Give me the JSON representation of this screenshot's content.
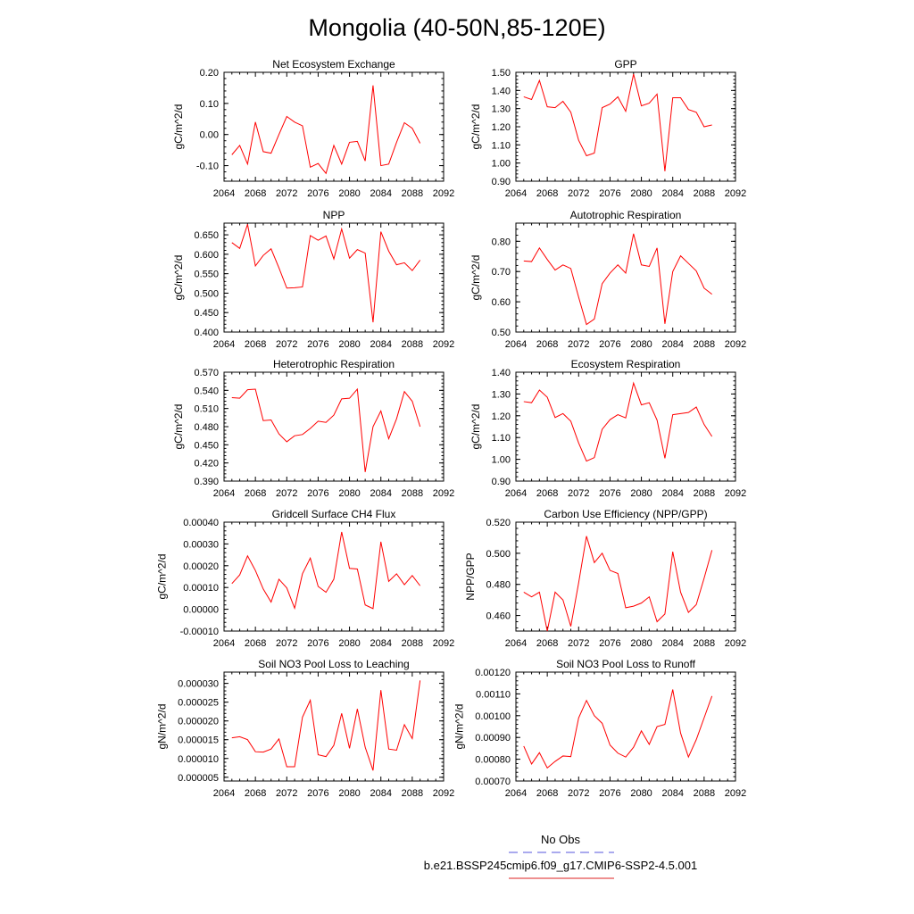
{
  "figure": {
    "title": "Mongolia (40-50N,85-120E)",
    "legend": [
      {
        "label": "No Obs",
        "color": "#5555dd",
        "style": "dashed"
      },
      {
        "label": "b.e21.BSSP245cmip6.f09_g17.CMIP6-SSP2-4.5.001",
        "color": "#dd2222",
        "style": "solid"
      }
    ]
  },
  "chart_data": [
    {
      "type": "line",
      "title": "Net Ecosystem Exchange",
      "ylabel": "gC/m^2/d",
      "xlim": [
        2064,
        2092
      ],
      "ylim": [
        -0.15,
        0.2
      ],
      "xticks": [
        "2064",
        "2068",
        "2072",
        "2076",
        "2080",
        "2084",
        "2088",
        "2092"
      ],
      "yticks": [
        "-0.10",
        "0.00",
        "0.10",
        "0.20"
      ],
      "series": [
        {
          "color": "#ff0000",
          "x": [
            2065,
            2066,
            2067,
            2068,
            2069,
            2070,
            2071,
            2072,
            2073,
            2074,
            2075,
            2076,
            2077,
            2078,
            2079,
            2080,
            2081,
            2082,
            2083,
            2084,
            2085,
            2086,
            2087,
            2088,
            2089
          ],
          "values": [
            -0.065,
            -0.035,
            -0.095,
            0.04,
            -0.055,
            -0.06,
            0.0,
            0.058,
            0.04,
            0.028,
            -0.105,
            -0.093,
            -0.125,
            -0.035,
            -0.095,
            -0.025,
            -0.022,
            -0.085,
            0.158,
            -0.1,
            -0.095,
            -0.025,
            0.038,
            0.02,
            -0.028
          ]
        }
      ]
    },
    {
      "type": "line",
      "title": "GPP",
      "ylabel": "gC/m^2/d",
      "xlim": [
        2064,
        2092
      ],
      "ylim": [
        0.9,
        1.5
      ],
      "xticks": [
        "2064",
        "2068",
        "2072",
        "2076",
        "2080",
        "2084",
        "2088",
        "2092"
      ],
      "yticks": [
        "0.90",
        "1.00",
        "1.10",
        "1.20",
        "1.30",
        "1.40",
        "1.50"
      ],
      "series": [
        {
          "color": "#ff0000",
          "x": [
            2065,
            2066,
            2067,
            2068,
            2069,
            2070,
            2071,
            2072,
            2073,
            2074,
            2075,
            2076,
            2077,
            2078,
            2079,
            2080,
            2081,
            2082,
            2083,
            2084,
            2085,
            2086,
            2087,
            2088,
            2089
          ],
          "values": [
            1.365,
            1.35,
            1.455,
            1.31,
            1.305,
            1.34,
            1.28,
            1.125,
            1.04,
            1.055,
            1.305,
            1.325,
            1.365,
            1.285,
            1.49,
            1.315,
            1.33,
            1.38,
            0.955,
            1.36,
            1.36,
            1.295,
            1.28,
            1.2,
            1.21
          ]
        }
      ]
    },
    {
      "type": "line",
      "title": "NPP",
      "ylabel": "gC/m^2/d",
      "xlim": [
        2064,
        2092
      ],
      "ylim": [
        0.4,
        0.68
      ],
      "xticks": [
        "2064",
        "2068",
        "2072",
        "2076",
        "2080",
        "2084",
        "2088",
        "2092"
      ],
      "yticks": [
        "0.400",
        "0.450",
        "0.500",
        "0.550",
        "0.600",
        "0.650"
      ],
      "series": [
        {
          "color": "#ff0000",
          "x": [
            2065,
            2066,
            2067,
            2068,
            2069,
            2070,
            2071,
            2072,
            2073,
            2074,
            2075,
            2076,
            2077,
            2078,
            2079,
            2080,
            2081,
            2082,
            2083,
            2084,
            2085,
            2086,
            2087,
            2088,
            2089
          ],
          "values": [
            0.63,
            0.615,
            0.677,
            0.57,
            0.597,
            0.614,
            0.565,
            0.513,
            0.514,
            0.516,
            0.648,
            0.636,
            0.647,
            0.588,
            0.665,
            0.59,
            0.612,
            0.603,
            0.425,
            0.658,
            0.608,
            0.573,
            0.578,
            0.558,
            0.585
          ]
        }
      ]
    },
    {
      "type": "line",
      "title": "Autotrophic Respiration",
      "ylabel": "gC/m^2/d",
      "xlim": [
        2064,
        2092
      ],
      "ylim": [
        0.5,
        0.86
      ],
      "xticks": [
        "2064",
        "2068",
        "2072",
        "2076",
        "2080",
        "2084",
        "2088",
        "2092"
      ],
      "yticks": [
        "0.50",
        "0.60",
        "0.70",
        "0.80"
      ],
      "series": [
        {
          "color": "#ff0000",
          "x": [
            2065,
            2066,
            2067,
            2068,
            2069,
            2070,
            2071,
            2072,
            2073,
            2074,
            2075,
            2076,
            2077,
            2078,
            2079,
            2080,
            2081,
            2082,
            2083,
            2084,
            2085,
            2086,
            2087,
            2088,
            2089
          ],
          "values": [
            0.735,
            0.733,
            0.778,
            0.74,
            0.705,
            0.722,
            0.71,
            0.615,
            0.525,
            0.543,
            0.66,
            0.695,
            0.722,
            0.695,
            0.825,
            0.722,
            0.717,
            0.778,
            0.527,
            0.7,
            0.752,
            0.727,
            0.702,
            0.645,
            0.625
          ]
        }
      ]
    },
    {
      "type": "line",
      "title": "Heterotrophic Respiration",
      "ylabel": "gC/m^2/d",
      "xlim": [
        2064,
        2092
      ],
      "ylim": [
        0.39,
        0.57
      ],
      "xticks": [
        "2064",
        "2068",
        "2072",
        "2076",
        "2080",
        "2084",
        "2088",
        "2092"
      ],
      "yticks": [
        "0.390",
        "0.420",
        "0.450",
        "0.480",
        "0.510",
        "0.540",
        "0.570"
      ],
      "series": [
        {
          "color": "#ff0000",
          "x": [
            2065,
            2066,
            2067,
            2068,
            2069,
            2070,
            2071,
            2072,
            2073,
            2074,
            2075,
            2076,
            2077,
            2078,
            2079,
            2080,
            2081,
            2082,
            2083,
            2084,
            2085,
            2086,
            2087,
            2088,
            2089
          ],
          "values": [
            0.528,
            0.527,
            0.541,
            0.542,
            0.49,
            0.491,
            0.468,
            0.455,
            0.465,
            0.467,
            0.477,
            0.489,
            0.487,
            0.499,
            0.526,
            0.527,
            0.542,
            0.405,
            0.48,
            0.506,
            0.46,
            0.493,
            0.538,
            0.522,
            0.48
          ]
        }
      ]
    },
    {
      "type": "line",
      "title": "Ecosystem Respiration",
      "ylabel": "gC/m^2/d",
      "xlim": [
        2064,
        2092
      ],
      "ylim": [
        0.9,
        1.4
      ],
      "xticks": [
        "2064",
        "2068",
        "2072",
        "2076",
        "2080",
        "2084",
        "2088",
        "2092"
      ],
      "yticks": [
        "0.90",
        "1.00",
        "1.10",
        "1.20",
        "1.30",
        "1.40"
      ],
      "series": [
        {
          "color": "#ff0000",
          "x": [
            2065,
            2066,
            2067,
            2068,
            2069,
            2070,
            2071,
            2072,
            2073,
            2074,
            2075,
            2076,
            2077,
            2078,
            2079,
            2080,
            2081,
            2082,
            2083,
            2084,
            2085,
            2086,
            2087,
            2088,
            2089
          ],
          "values": [
            1.265,
            1.26,
            1.318,
            1.285,
            1.192,
            1.21,
            1.175,
            1.075,
            0.992,
            1.008,
            1.138,
            1.182,
            1.205,
            1.19,
            1.35,
            1.25,
            1.26,
            1.18,
            1.005,
            1.205,
            1.21,
            1.215,
            1.24,
            1.16,
            1.105
          ]
        }
      ]
    },
    {
      "type": "line",
      "title": "Gridcell Surface CH4 Flux",
      "ylabel": "gC/m^2/d",
      "xlim": [
        2064,
        2092
      ],
      "ylim": [
        -0.0001,
        0.0004
      ],
      "xticks": [
        "2064",
        "2068",
        "2072",
        "2076",
        "2080",
        "2084",
        "2088",
        "2092"
      ],
      "yticks": [
        "-0.00010",
        "0.00000",
        "0.00010",
        "0.00020",
        "0.00030",
        "0.00040"
      ],
      "series": [
        {
          "color": "#ff0000",
          "x": [
            2065,
            2066,
            2067,
            2068,
            2069,
            2070,
            2071,
            2072,
            2073,
            2074,
            2075,
            2076,
            2077,
            2078,
            2079,
            2080,
            2081,
            2082,
            2083,
            2084,
            2085,
            2086,
            2087,
            2088,
            2089
          ],
          "values": [
            0.000118,
            0.000158,
            0.000245,
            0.000178,
            9.3e-05,
            3.3e-05,
            0.000138,
            9.8e-05,
            5e-06,
            0.000163,
            0.000235,
            0.000105,
            7.8e-05,
            0.000138,
            0.000355,
            0.000188,
            0.000185,
            2e-05,
            3e-06,
            0.00031,
            0.000128,
            0.000163,
            0.000113,
            0.000155,
            0.000108
          ]
        }
      ]
    },
    {
      "type": "line",
      "title": "Carbon Use Efficiency (NPP/GPP)",
      "ylabel": "NPP/GPP",
      "xlim": [
        2064,
        2092
      ],
      "ylim": [
        0.45,
        0.52
      ],
      "xticks": [
        "2064",
        "2068",
        "2072",
        "2076",
        "2080",
        "2084",
        "2088",
        "2092"
      ],
      "yticks": [
        "0.460",
        "0.480",
        "0.500",
        "0.520"
      ],
      "series": [
        {
          "color": "#ff0000",
          "x": [
            2065,
            2066,
            2067,
            2068,
            2069,
            2070,
            2071,
            2072,
            2073,
            2074,
            2075,
            2076,
            2077,
            2078,
            2079,
            2080,
            2081,
            2082,
            2083,
            2084,
            2085,
            2086,
            2087,
            2088,
            2089
          ],
          "values": [
            0.475,
            0.472,
            0.475,
            0.45,
            0.475,
            0.47,
            0.453,
            0.481,
            0.511,
            0.494,
            0.5,
            0.489,
            0.487,
            0.465,
            0.466,
            0.468,
            0.472,
            0.456,
            0.461,
            0.501,
            0.475,
            0.462,
            0.467,
            0.484,
            0.502
          ]
        }
      ]
    },
    {
      "type": "line",
      "title": "Soil NO3 Pool Loss to Leaching",
      "ylabel": "gN/m^2/d",
      "xlim": [
        2064,
        2092
      ],
      "ylim": [
        4e-06,
        3.3e-05
      ],
      "xticks": [
        "2064",
        "2068",
        "2072",
        "2076",
        "2080",
        "2084",
        "2088",
        "2092"
      ],
      "yticks": [
        "0.000005",
        "0.000010",
        "0.000015",
        "0.000020",
        "0.000025",
        "0.000030"
      ],
      "series": [
        {
          "color": "#ff0000",
          "x": [
            2065,
            2066,
            2067,
            2068,
            2069,
            2070,
            2071,
            2072,
            2073,
            2074,
            2075,
            2076,
            2077,
            2078,
            2079,
            2080,
            2081,
            2082,
            2083,
            2084,
            2085,
            2086,
            2087,
            2088,
            2089
          ],
          "values": [
            1.55e-05,
            1.58e-05,
            1.5e-05,
            1.18e-05,
            1.17e-05,
            1.25e-05,
            1.52e-05,
            7.8e-06,
            7.8e-06,
            2.1e-05,
            2.55e-05,
            1.1e-05,
            1.05e-05,
            1.35e-05,
            2.2e-05,
            1.27e-05,
            2.32e-05,
            1.3e-05,
            6.8e-06,
            2.82e-05,
            1.25e-05,
            1.22e-05,
            1.9e-05,
            1.53e-05,
            3.08e-05
          ]
        }
      ]
    },
    {
      "type": "line",
      "title": "Soil NO3 Pool Loss to Runoff",
      "ylabel": "gN/m^2/d",
      "xlim": [
        2064,
        2092
      ],
      "ylim": [
        0.0007,
        0.0012
      ],
      "xticks": [
        "2064",
        "2068",
        "2072",
        "2076",
        "2080",
        "2084",
        "2088",
        "2092"
      ],
      "yticks": [
        "0.00070",
        "0.00080",
        "0.00090",
        "0.00100",
        "0.00110",
        "0.00120"
      ],
      "series": [
        {
          "color": "#ff0000",
          "x": [
            2065,
            2066,
            2067,
            2068,
            2069,
            2070,
            2071,
            2072,
            2073,
            2074,
            2075,
            2076,
            2077,
            2078,
            2079,
            2080,
            2081,
            2082,
            2083,
            2084,
            2085,
            2086,
            2087,
            2088,
            2089
          ],
          "values": [
            0.00086,
            0.000778,
            0.00083,
            0.00076,
            0.00079,
            0.000815,
            0.000812,
            0.00099,
            0.00107,
            0.001,
            0.000965,
            0.000865,
            0.000828,
            0.00081,
            0.000855,
            0.00093,
            0.000868,
            0.00095,
            0.00096,
            0.00112,
            0.00092,
            0.00081,
            0.00089,
            0.00099,
            0.00109
          ]
        }
      ]
    }
  ]
}
